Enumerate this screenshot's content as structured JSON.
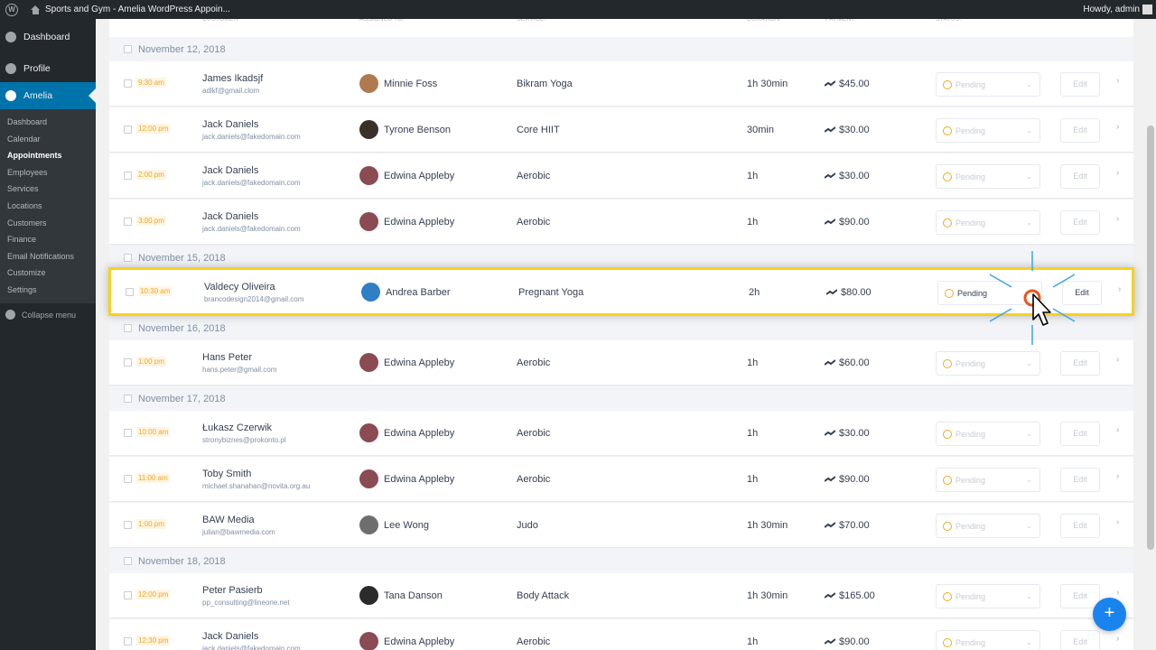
{
  "adminbar": {
    "site_name": "Sports and Gym - Amelia WordPress Appoin...",
    "howdy": "Howdy, admin"
  },
  "sidebar": {
    "top_items": [
      {
        "label": "Dashboard",
        "icon": "dashboard-icon"
      },
      {
        "label": "Profile",
        "icon": "profile-icon"
      },
      {
        "label": "Amelia",
        "icon": "amelia-icon",
        "active": true
      }
    ],
    "submenu": [
      "Dashboard",
      "Calendar",
      "Appointments",
      "Employees",
      "Services",
      "Locations",
      "Customers",
      "Finance",
      "Email Notifications",
      "Customize",
      "Settings"
    ],
    "current": "Appointments",
    "collapse_label": "Collapse menu"
  },
  "table": {
    "headers": [
      "CUSTOMER",
      "ASSIGNED TO:",
      "SERVICE:",
      "DURATION:",
      "PAYMENT:",
      "STATUS:"
    ],
    "edit_label": "Edit",
    "groups": [
      {
        "date": "November 12, 2018",
        "rows": [
          {
            "time": "9:30 am",
            "customer": "James Ikadsjf",
            "email": "adlkf@gmail.clom",
            "employee": "Minnie Foss",
            "service": "Bikram Yoga",
            "duration": "1h 30min",
            "payment": "$45.00",
            "status": "Pending"
          },
          {
            "time": "12:00 pm",
            "customer": "Jack Daniels",
            "email": "jack.daniels@fakedomain.com",
            "employee": "Tyrone Benson",
            "service": "Core HIIT",
            "duration": "30min",
            "payment": "$30.00",
            "status": "Pending"
          },
          {
            "time": "2:00 pm",
            "customer": "Jack Daniels",
            "email": "jack.daniels@fakedomain.com",
            "employee": "Edwina Appleby",
            "service": "Aerobic",
            "duration": "1h",
            "payment": "$30.00",
            "status": "Pending"
          },
          {
            "time": "3:00 pm",
            "customer": "Jack Daniels",
            "email": "jack.daniels@fakedomain.com",
            "employee": "Edwina Appleby",
            "service": "Aerobic",
            "duration": "1h",
            "payment": "$90.00",
            "status": "Pending"
          }
        ]
      },
      {
        "date": "November 15, 2018",
        "rows": [
          {
            "time": "10:30 am",
            "customer": "Valdecy Oliveira",
            "email": "brancodesign2014@gmail.com",
            "employee": "Andrea Barber",
            "service": "Pregnant Yoga",
            "duration": "2h",
            "payment": "$80.00",
            "status": "Pending"
          }
        ]
      },
      {
        "date": "November 16, 2018",
        "rows": [
          {
            "time": "1:00 pm",
            "customer": "Hans Peter",
            "email": "hans.peter@gmail.com",
            "employee": "Edwina Appleby",
            "service": "Aerobic",
            "duration": "1h",
            "payment": "$60.00",
            "status": "Pending"
          }
        ]
      },
      {
        "date": "November 17, 2018",
        "rows": [
          {
            "time": "10:00 am",
            "customer": "Łukasz Czerwik",
            "email": "stronybiznes@prokonto.pl",
            "employee": "Edwina Appleby",
            "service": "Aerobic",
            "duration": "1h",
            "payment": "$30.00",
            "status": "Pending"
          },
          {
            "time": "11:00 am",
            "customer": "Toby Smith",
            "email": "michael.shanahan@novita.org.au",
            "employee": "Edwina Appleby",
            "service": "Aerobic",
            "duration": "1h",
            "payment": "$90.00",
            "status": "Pending"
          },
          {
            "time": "1:00 pm",
            "customer": "BAW Media",
            "email": "julian@bawmedia.com",
            "employee": "Lee Wong",
            "service": "Judo",
            "duration": "1h 30min",
            "payment": "$70.00",
            "status": "Pending"
          }
        ]
      },
      {
        "date": "November 18, 2018",
        "rows": [
          {
            "time": "12:00 pm",
            "customer": "Peter Pasierb",
            "email": "pp_consulting@lineone.net",
            "employee": "Tana Danson",
            "service": "Body Attack",
            "duration": "1h 30min",
            "payment": "$165.00",
            "status": "Pending"
          },
          {
            "time": "12:30 pm",
            "customer": "Jack Daniels",
            "email": "jack.daniels@fakedomain.com",
            "employee": "Edwina Appleby",
            "service": "Aerobic",
            "duration": "1h",
            "payment": "$90.00",
            "status": "Pending"
          }
        ]
      }
    ]
  },
  "fab_label": "+",
  "colors": {
    "accent": "#1a84ee",
    "highlight": "#f7d11e",
    "pending": "#f5a623",
    "wp_blue": "#0073aa"
  }
}
